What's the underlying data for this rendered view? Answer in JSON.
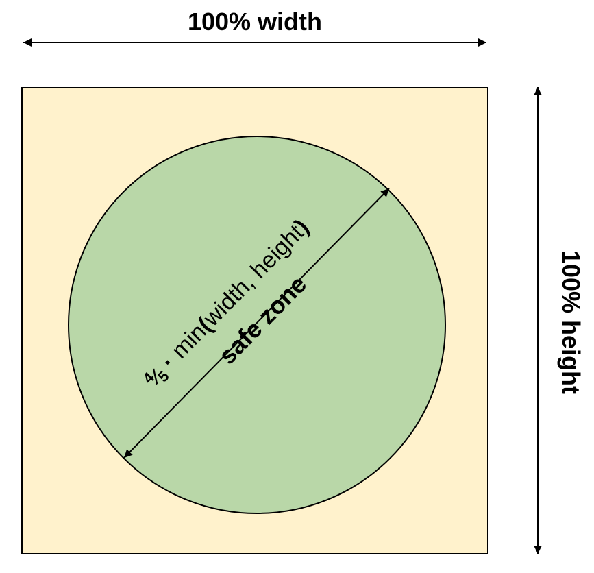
{
  "labels": {
    "width": "100% width",
    "height": "100% height",
    "zone": "safe zone",
    "fraction_numerator": "4",
    "fraction_denominator": "5",
    "dot": "·",
    "formula_func": "min",
    "formula_open": "(",
    "formula_args": "width, height",
    "formula_close": ")"
  },
  "colors": {
    "frame_fill": "#fff2cc",
    "circle_fill": "#b9d7a8",
    "stroke": "#000000"
  }
}
